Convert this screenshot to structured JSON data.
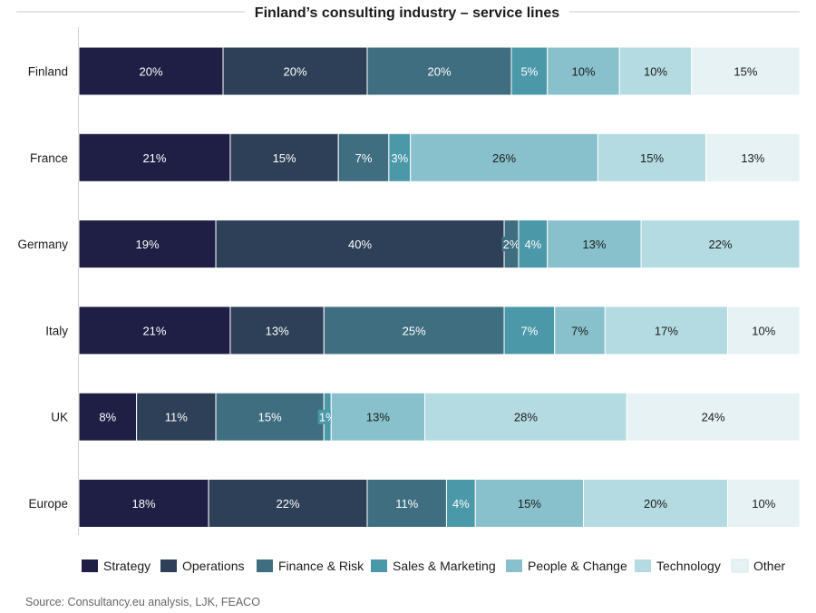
{
  "chart_data": {
    "type": "bar",
    "orientation": "horizontal",
    "stacked": true,
    "title": "Finland’s consulting industry – service lines",
    "source": "Source: Consultancy.eu analysis, LJK, FEACO",
    "categories": [
      "Finland",
      "France",
      "Germany",
      "Italy",
      "UK",
      "Europe"
    ],
    "series": [
      {
        "name": "Strategy",
        "color": "#1f1f45",
        "label_color": "#ffffff",
        "values": [
          20,
          21,
          19,
          21,
          8,
          18
        ]
      },
      {
        "name": "Operations",
        "color": "#2e4057",
        "label_color": "#ffffff",
        "values": [
          20,
          15,
          40,
          13,
          11,
          22
        ]
      },
      {
        "name": "Finance & Risk",
        "color": "#3e6e80",
        "label_color": "#ffffff",
        "values": [
          20,
          7,
          2,
          25,
          15,
          11
        ]
      },
      {
        "name": "Sales & Marketing",
        "color": "#4a98a8",
        "label_color": "#ffffff",
        "values": [
          5,
          3,
          4,
          7,
          1,
          4
        ]
      },
      {
        "name": "People & Change",
        "color": "#88c1cb",
        "label_color": "#1c1c1c",
        "values": [
          10,
          26,
          13,
          7,
          13,
          15
        ]
      },
      {
        "name": "Technology",
        "color": "#b4dbe1",
        "label_color": "#1c1c1c",
        "values": [
          10,
          15,
          22,
          17,
          28,
          20
        ]
      },
      {
        "name": "Other",
        "color": "#e6f2f4",
        "label_color": "#1c1c1c",
        "values": [
          15,
          13,
          0,
          10,
          24,
          10
        ]
      }
    ],
    "value_suffix": "%",
    "xlim": [
      0,
      100
    ],
    "legend_position": "bottom"
  }
}
